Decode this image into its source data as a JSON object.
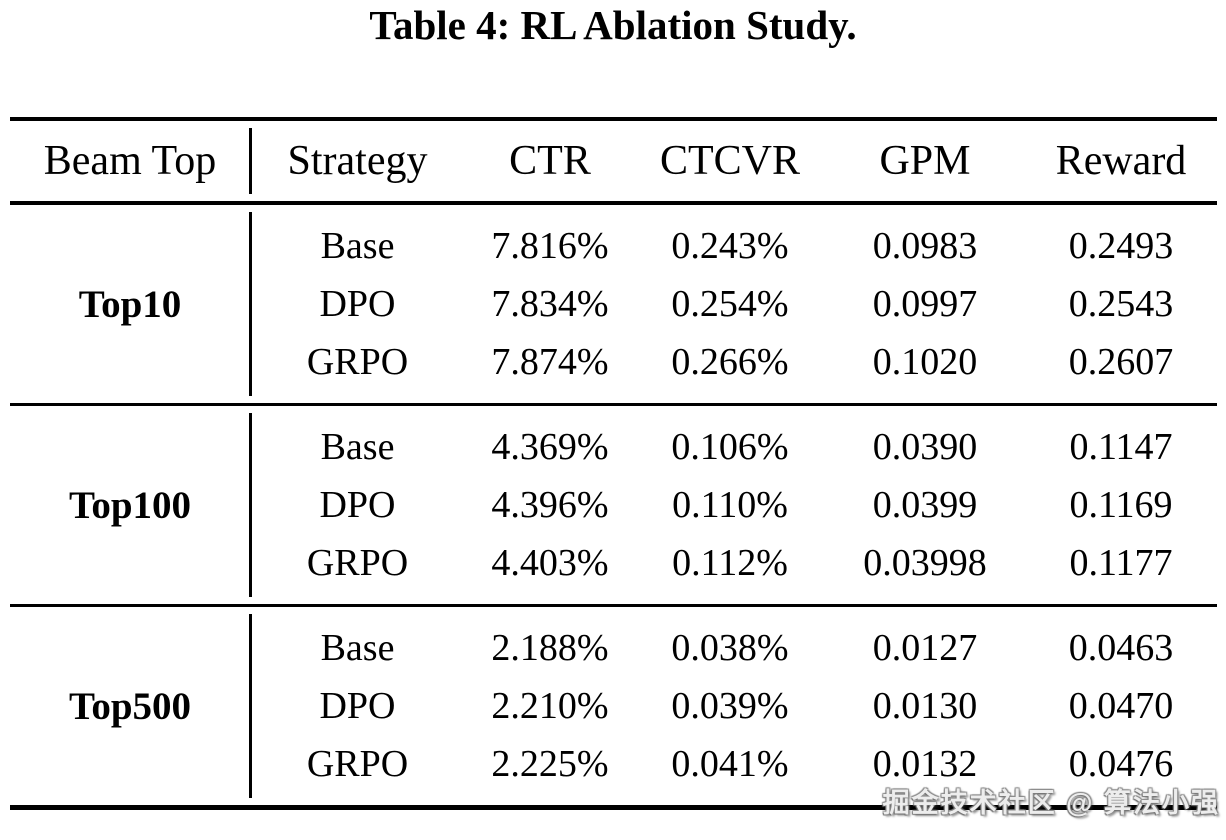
{
  "chart_data": {
    "type": "table",
    "title": "Table 4: RL Ablation Study.",
    "columns": [
      "Beam Top",
      "Strategy",
      "CTR",
      "CTCVR",
      "GPM",
      "Reward"
    ],
    "groups": [
      {
        "beam_top": "Top10",
        "rows": [
          [
            "Base",
            "7.816%",
            "0.243%",
            "0.0983",
            "0.2493"
          ],
          [
            "DPO",
            "7.834%",
            "0.254%",
            "0.0997",
            "0.2543"
          ],
          [
            "GRPO",
            "7.874%",
            "0.266%",
            "0.1020",
            "0.2607"
          ]
        ]
      },
      {
        "beam_top": "Top100",
        "rows": [
          [
            "Base",
            "4.369%",
            "0.106%",
            "0.0390",
            "0.1147"
          ],
          [
            "DPO",
            "4.396%",
            "0.110%",
            "0.0399",
            "0.1169"
          ],
          [
            "GRPO",
            "4.403%",
            "0.112%",
            "0.03998",
            "0.1177"
          ]
        ]
      },
      {
        "beam_top": "Top500",
        "rows": [
          [
            "Base",
            "2.188%",
            "0.038%",
            "0.0127",
            "0.0463"
          ],
          [
            "DPO",
            "2.210%",
            "0.039%",
            "0.0130",
            "0.0470"
          ],
          [
            "GRPO",
            "2.225%",
            "0.041%",
            "0.0132",
            "0.0476"
          ]
        ]
      }
    ]
  },
  "watermark": {
    "text": "掘金技术社区 @ 算法小强"
  },
  "colors": {
    "text": "#000000",
    "background": "#ffffff",
    "rule": "#000000",
    "watermark": "#ededed"
  }
}
